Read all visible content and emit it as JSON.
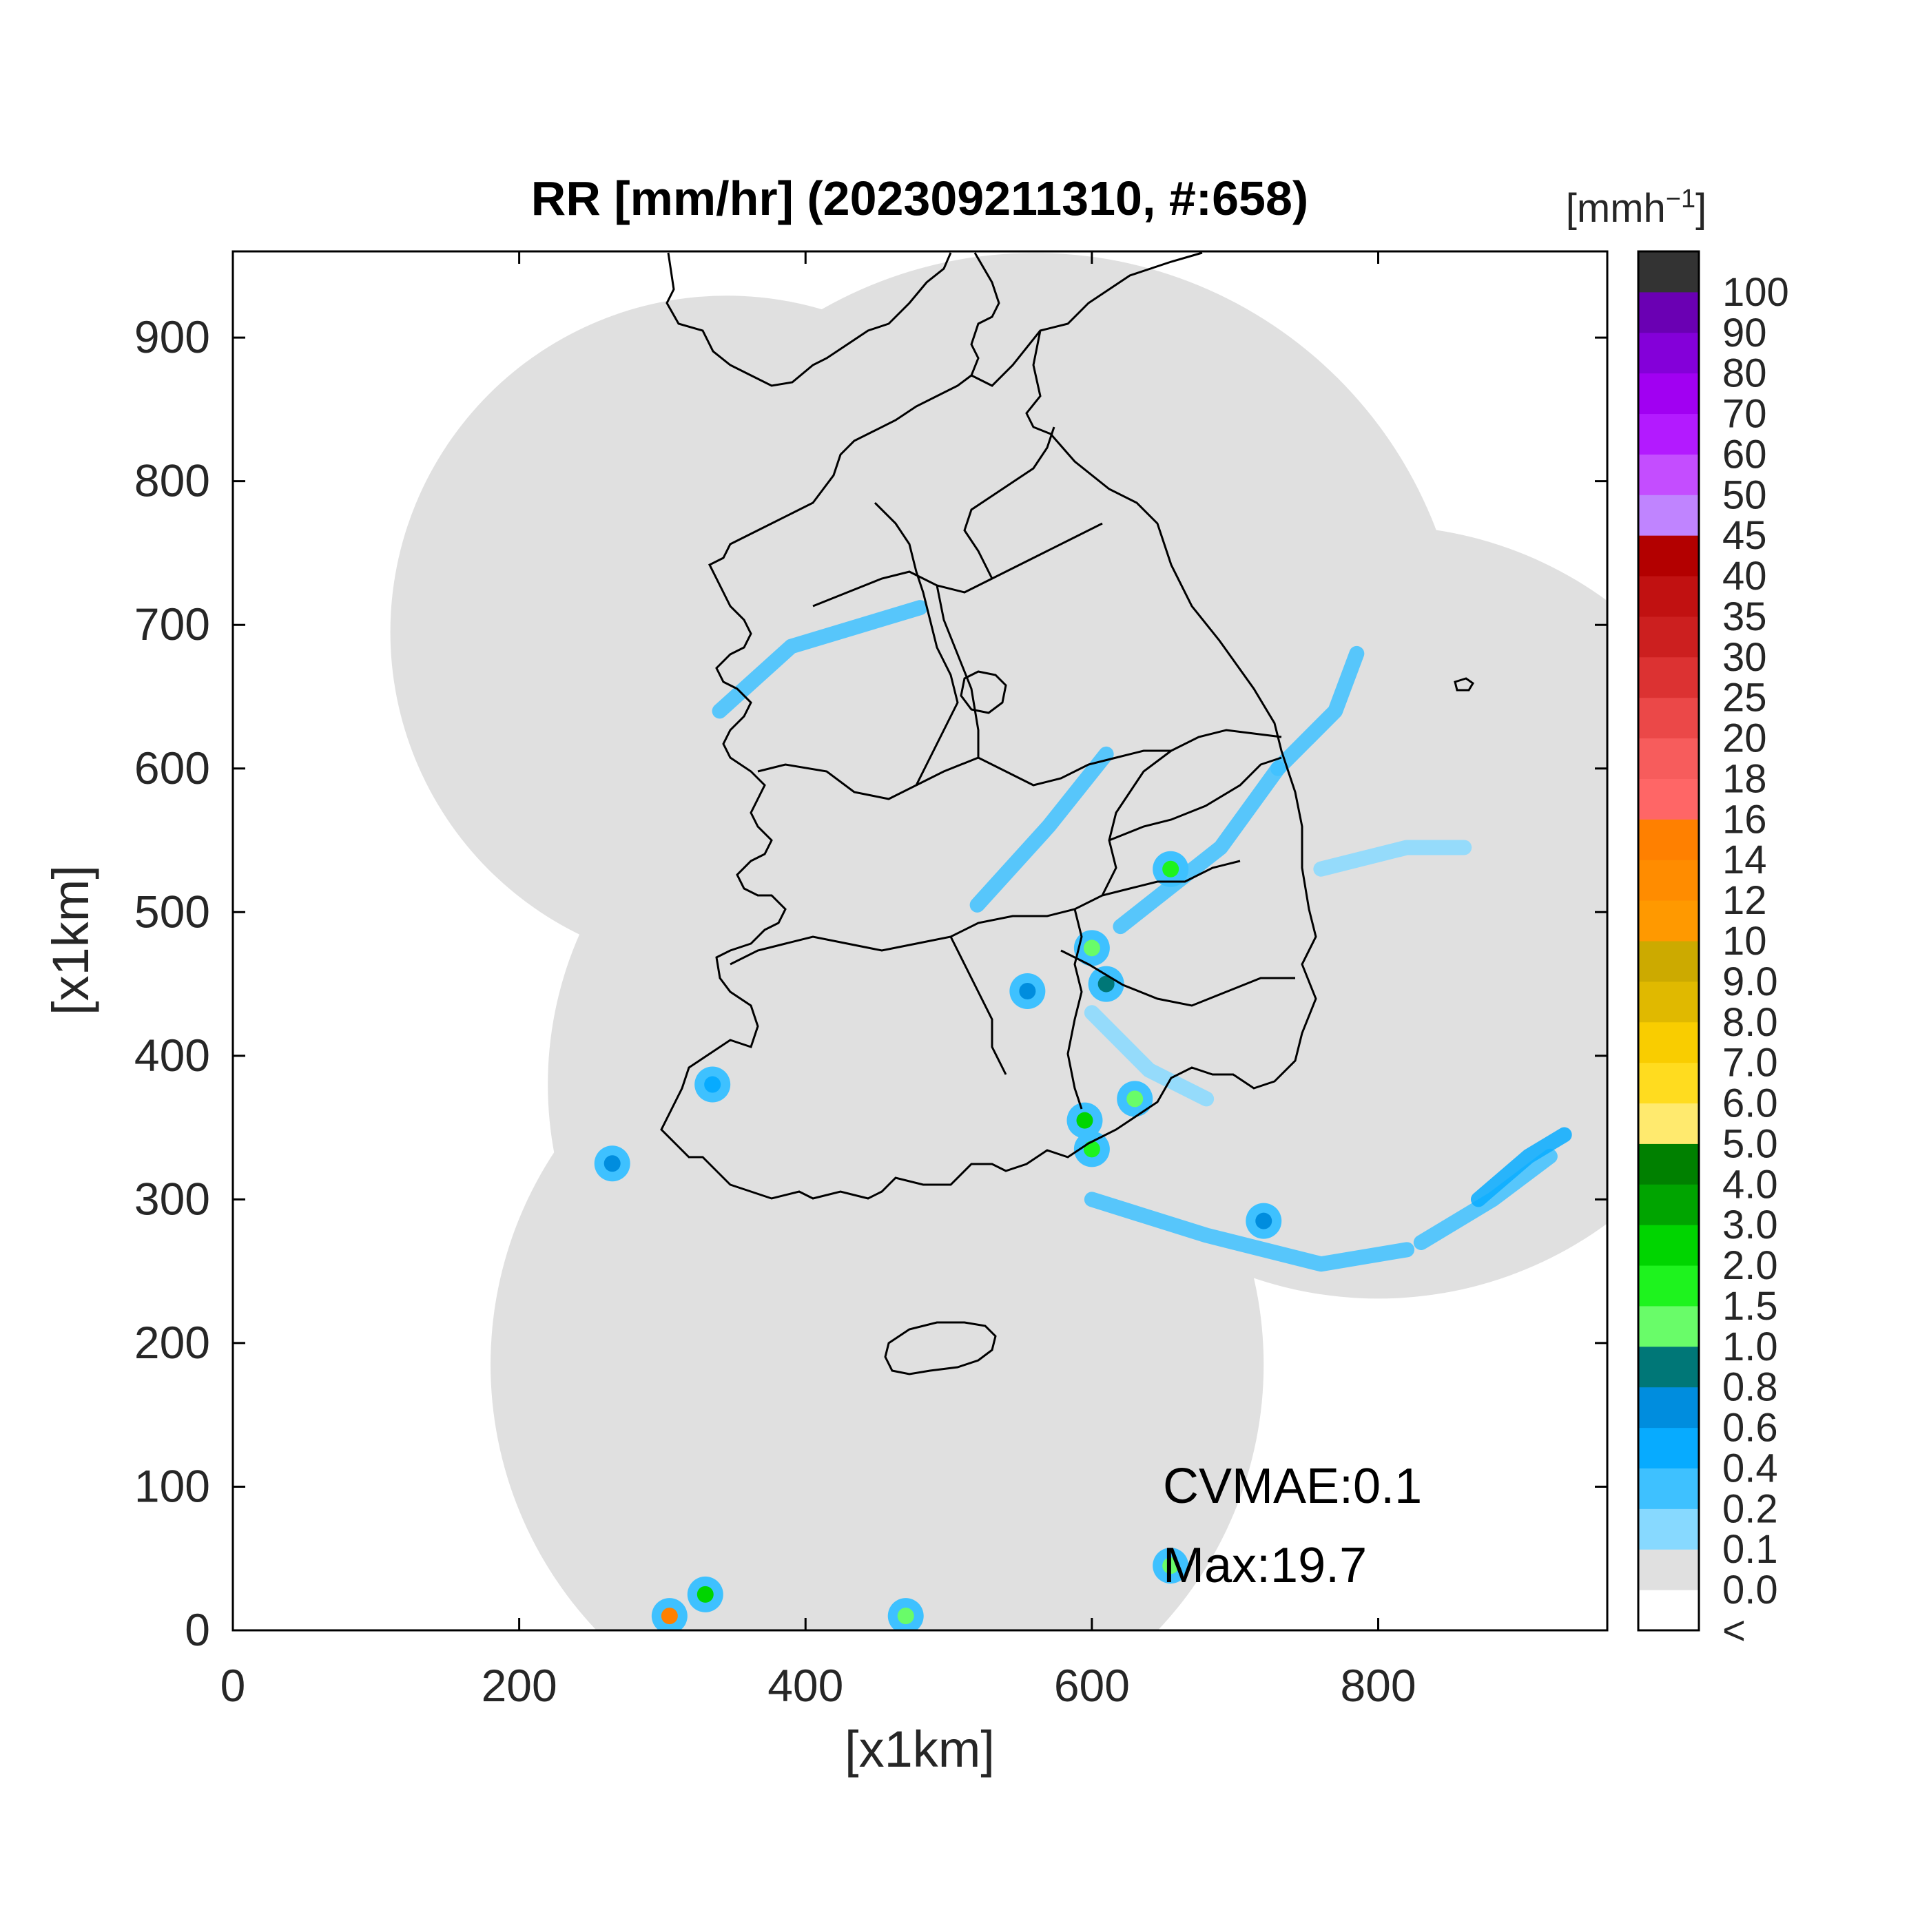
{
  "title": "RR [mm/hr] (202309211310, #:658)",
  "axes": {
    "xlabel": "[x1km]",
    "ylabel": "[x1km]",
    "xlim": [
      0,
      960
    ],
    "ylim": [
      0,
      960
    ],
    "xticks": [
      0,
      200,
      400,
      600,
      800
    ],
    "yticks": [
      0,
      100,
      200,
      300,
      400,
      500,
      600,
      700,
      800,
      900
    ]
  },
  "annotations": {
    "cvmae": "CVMAE:0.1",
    "max": "Max:19.7"
  },
  "colorbar": {
    "unit_main": "[mmh",
    "unit_sup": "−1",
    "unit_end": "]",
    "levels": [
      {
        "label": "<",
        "color": "#ffffff"
      },
      {
        "label": "0.0",
        "color": "#e0e0e0"
      },
      {
        "label": "0.1",
        "color": "#87d9ff"
      },
      {
        "label": "0.2",
        "color": "#3ec1ff"
      },
      {
        "label": "0.4",
        "color": "#07abff"
      },
      {
        "label": "0.6",
        "color": "#008dde"
      },
      {
        "label": "0.8",
        "color": "#007777"
      },
      {
        "label": "1.0",
        "color": "#69fc69"
      },
      {
        "label": "1.5",
        "color": "#1ef31e"
      },
      {
        "label": "2.0",
        "color": "#00d500"
      },
      {
        "label": "3.0",
        "color": "#00a400"
      },
      {
        "label": "4.0",
        "color": "#008000"
      },
      {
        "label": "5.0",
        "color": "#ffea6e"
      },
      {
        "label": "6.0",
        "color": "#ffdc1f"
      },
      {
        "label": "7.0",
        "color": "#f9cd00"
      },
      {
        "label": "8.0",
        "color": "#e0b900"
      },
      {
        "label": "9.0",
        "color": "#ccaa00"
      },
      {
        "label": "10",
        "color": "#ff9900"
      },
      {
        "label": "12",
        "color": "#ff8c00"
      },
      {
        "label": "14",
        "color": "#ff8000"
      },
      {
        "label": "16",
        "color": "#ff6666"
      },
      {
        "label": "18",
        "color": "#f75c5c"
      },
      {
        "label": "20",
        "color": "#eb4848"
      },
      {
        "label": "25",
        "color": "#dc3232"
      },
      {
        "label": "30",
        "color": "#cc1f1f"
      },
      {
        "label": "35",
        "color": "#c11111"
      },
      {
        "label": "40",
        "color": "#b30000"
      },
      {
        "label": "45",
        "color": "#c084ff"
      },
      {
        "label": "50",
        "color": "#c44dff"
      },
      {
        "label": "60",
        "color": "#b31aff"
      },
      {
        "label": "70",
        "color": "#a100f2"
      },
      {
        "label": "80",
        "color": "#8400d9"
      },
      {
        "label": "90",
        "color": "#6a00b3"
      },
      {
        "label": "100",
        "color": "#333333"
      }
    ]
  },
  "chart_data": {
    "type": "heatmap",
    "title": "RR [mm/hr] (202309211310, #:658)",
    "xlabel": "[x1km]",
    "ylabel": "[x1km]",
    "xlim": [
      0,
      960
    ],
    "ylim": [
      0,
      960
    ],
    "max_value": 19.7,
    "cvmae": 0.1,
    "radar_coverage_circles": [
      {
        "cx": 345,
        "cy": 695,
        "r": 235
      },
      {
        "cx": 560,
        "cy": 660,
        "r": 300
      },
      {
        "cx": 800,
        "cy": 500,
        "r": 270
      },
      {
        "cx": 480,
        "cy": 380,
        "r": 260
      },
      {
        "cx": 450,
        "cy": 185,
        "r": 270
      }
    ],
    "rain_cells": [
      {
        "x": 655,
        "y": 530,
        "value": 1.5
      },
      {
        "x": 600,
        "y": 475,
        "value": 1.0
      },
      {
        "x": 610,
        "y": 450,
        "value": 0.8
      },
      {
        "x": 555,
        "y": 445,
        "value": 0.6
      },
      {
        "x": 595,
        "y": 355,
        "value": 2.0
      },
      {
        "x": 600,
        "y": 335,
        "value": 1.5
      },
      {
        "x": 630,
        "y": 370,
        "value": 1.0
      },
      {
        "x": 305,
        "y": 10,
        "value": 14
      },
      {
        "x": 330,
        "y": 25,
        "value": 2.0
      },
      {
        "x": 470,
        "y": 10,
        "value": 1.0
      },
      {
        "x": 265,
        "y": 325,
        "value": 0.6
      },
      {
        "x": 335,
        "y": 380,
        "value": 0.4
      },
      {
        "x": 720,
        "y": 285,
        "value": 0.6
      },
      {
        "x": 655,
        "y": 45,
        "value": 1.0
      }
    ],
    "rain_bands": [
      {
        "points": [
          [
            340,
            640
          ],
          [
            390,
            685
          ],
          [
            480,
            712
          ]
        ],
        "value": 0.2
      },
      {
        "points": [
          [
            520,
            505
          ],
          [
            570,
            560
          ],
          [
            610,
            610
          ]
        ],
        "value": 0.2
      },
      {
        "points": [
          [
            620,
            490
          ],
          [
            690,
            545
          ],
          [
            730,
            600
          ]
        ],
        "value": 0.2
      },
      {
        "points": [
          [
            730,
            600
          ],
          [
            770,
            640
          ],
          [
            785,
            680
          ]
        ],
        "value": 0.2
      },
      {
        "points": [
          [
            680,
            370
          ],
          [
            640,
            390
          ],
          [
            600,
            430
          ]
        ],
        "value": 0.1
      },
      {
        "points": [
          [
            600,
            300
          ],
          [
            680,
            275
          ],
          [
            760,
            255
          ],
          [
            820,
            265
          ]
        ],
        "value": 0.2
      },
      {
        "points": [
          [
            830,
            270
          ],
          [
            880,
            300
          ],
          [
            920,
            330
          ]
        ],
        "value": 0.2
      },
      {
        "points": [
          [
            760,
            530
          ],
          [
            820,
            545
          ],
          [
            860,
            545
          ]
        ],
        "value": 0.1
      },
      {
        "points": [
          [
            870,
            300
          ],
          [
            905,
            330
          ],
          [
            930,
            345
          ]
        ],
        "value": 0.4
      }
    ]
  }
}
